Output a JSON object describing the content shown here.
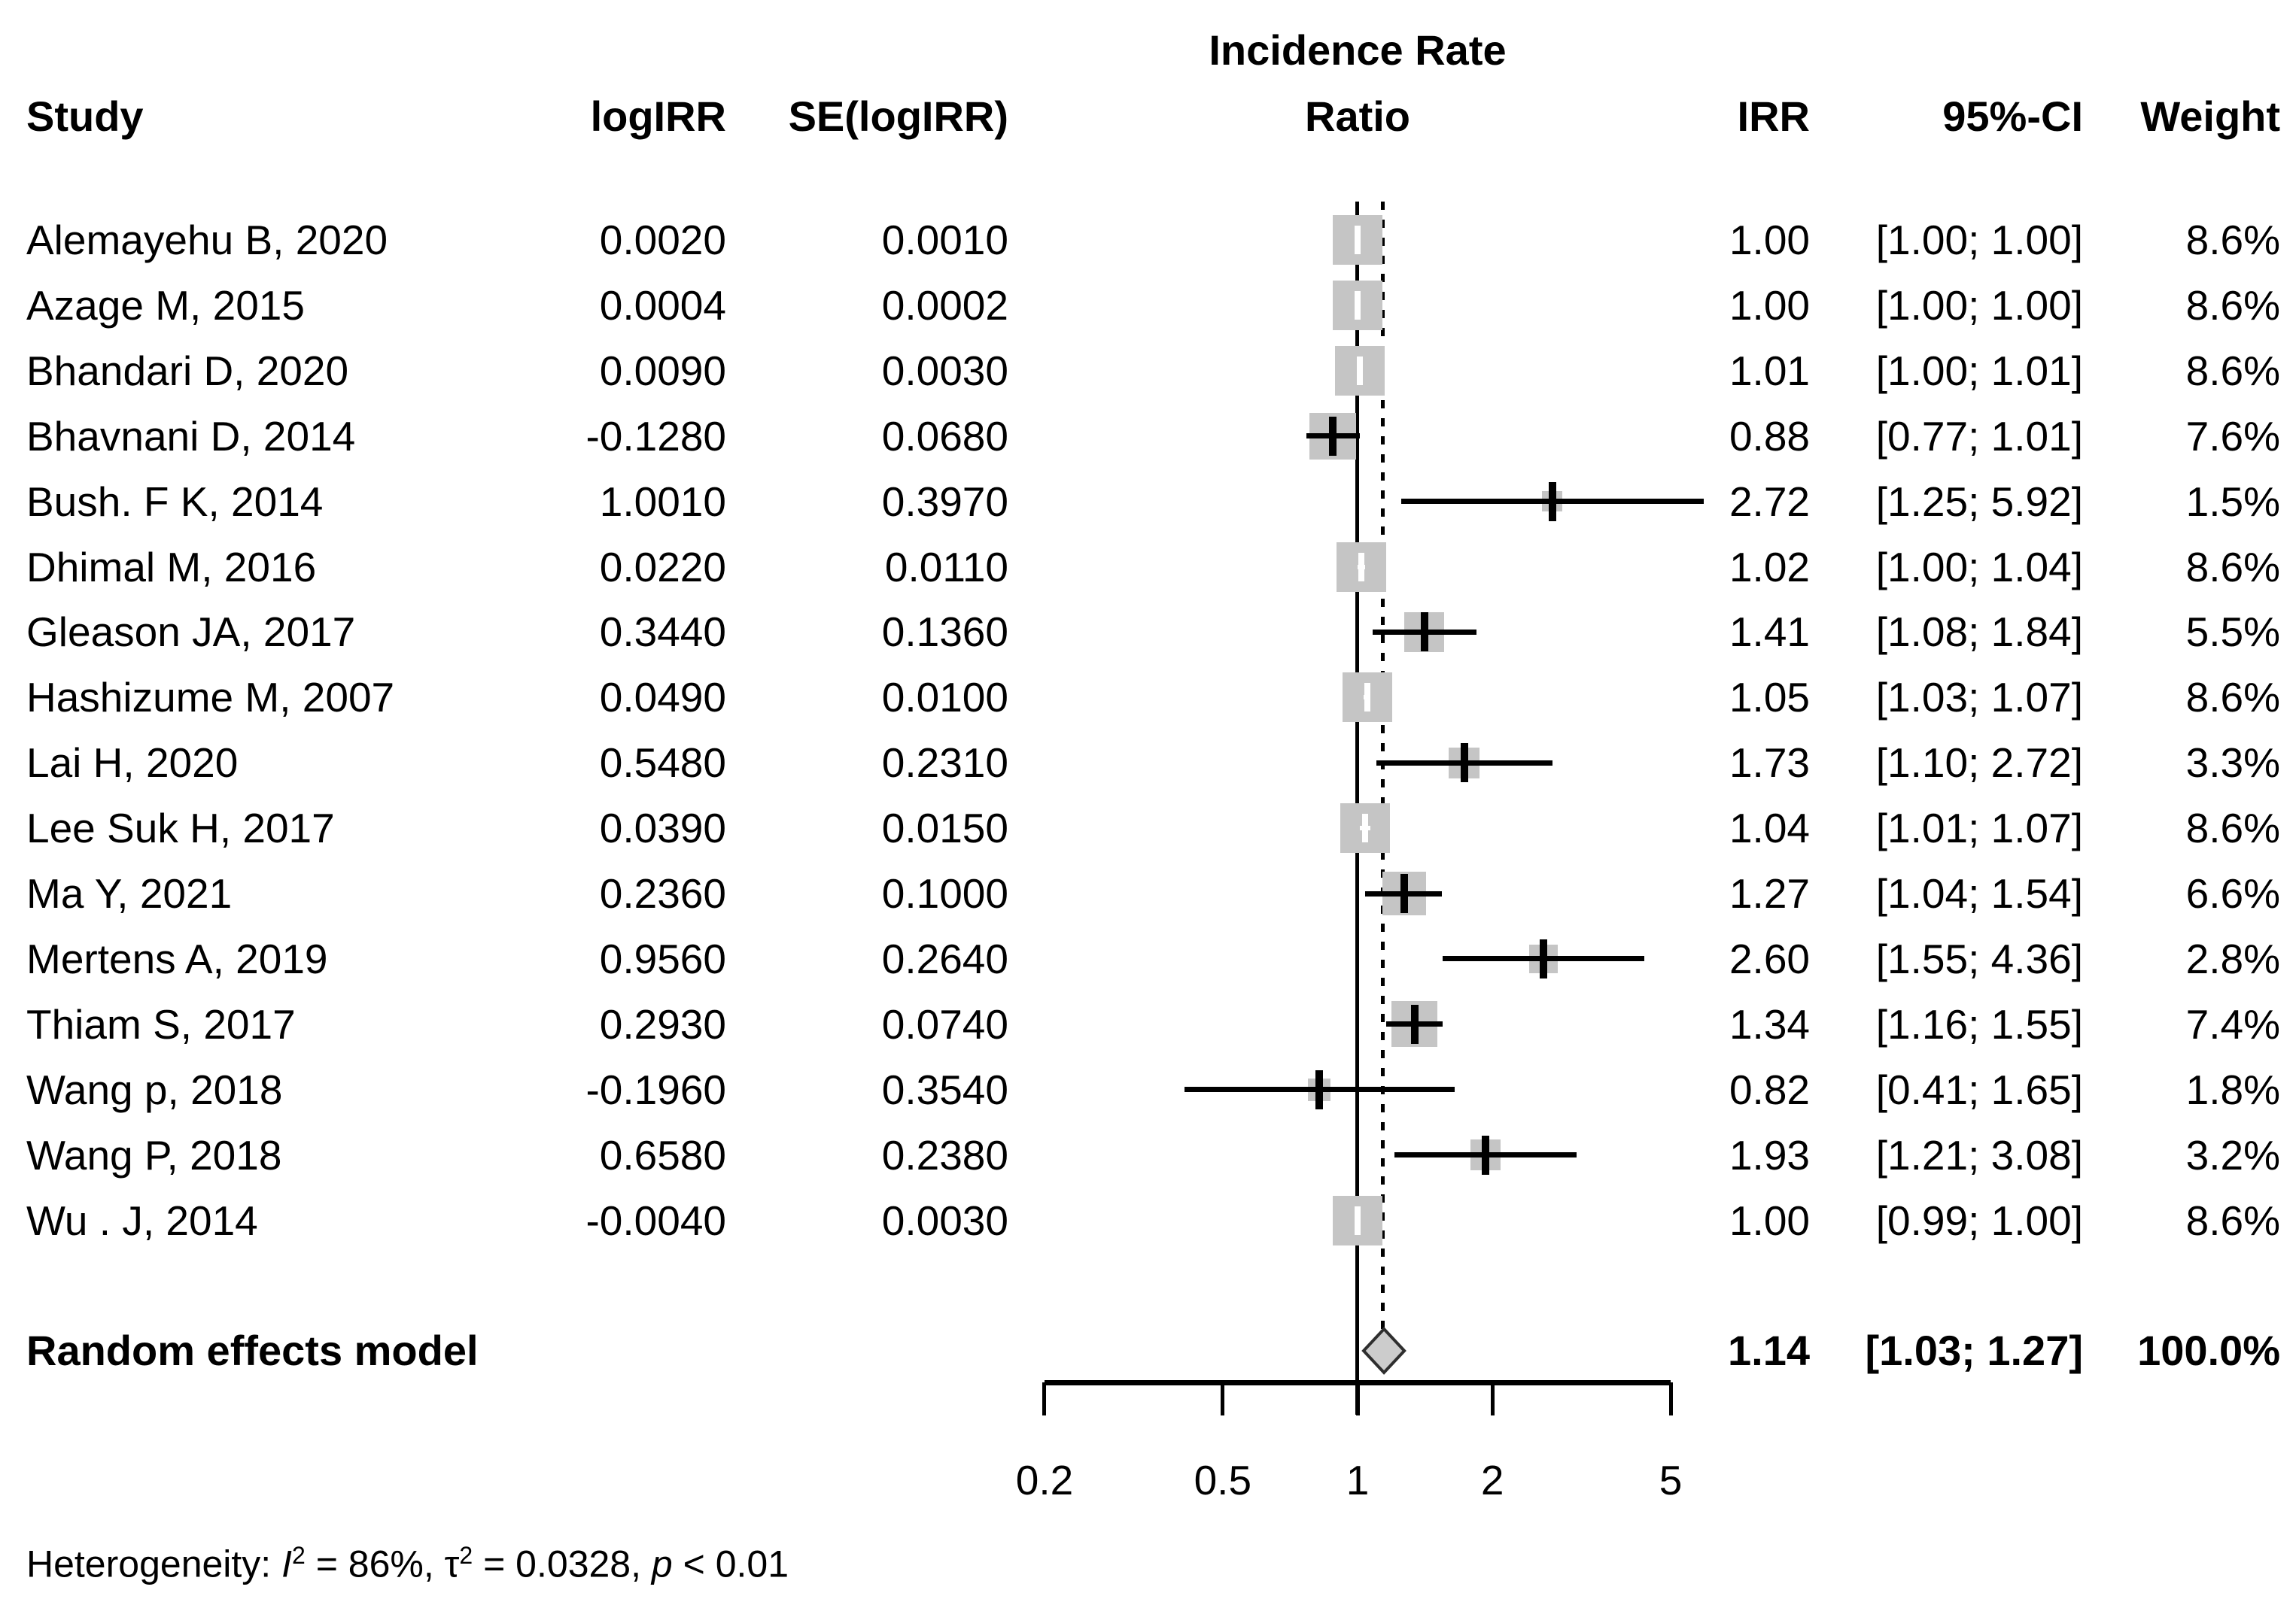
{
  "headers": {
    "study": "Study",
    "logirr": "logIRR",
    "se": "SE(logIRR)",
    "plot_line1": "Incidence Rate",
    "plot_line2": "Ratio",
    "irr": "IRR",
    "ci": "95%-CI",
    "weight": "Weight"
  },
  "chart_data": {
    "type": "forest",
    "x_axis": {
      "scale": "log",
      "ticks": [
        0.2,
        0.5,
        1,
        2,
        5
      ],
      "tick_labels": [
        "0.2",
        "0.5",
        "1",
        "2",
        "5"
      ],
      "reference_line": 1,
      "pooled_dashed_line": 1.14,
      "range": [
        0.2,
        5
      ]
    },
    "studies": [
      {
        "name": "Alemayehu B, 2020",
        "logIRR": "0.0020",
        "se": "0.0010",
        "irr": 1.0,
        "irr_text": "1.00",
        "ci_lo": 1.0,
        "ci_hi": 1.0,
        "ci_text": "[1.00; 1.00]",
        "weight": 8.6,
        "weight_text": "8.6%"
      },
      {
        "name": "Azage M, 2015",
        "logIRR": "0.0004",
        "se": "0.0002",
        "irr": 1.0,
        "irr_text": "1.00",
        "ci_lo": 1.0,
        "ci_hi": 1.0,
        "ci_text": "[1.00; 1.00]",
        "weight": 8.6,
        "weight_text": "8.6%"
      },
      {
        "name": "Bhandari D, 2020",
        "logIRR": "0.0090",
        "se": "0.0030",
        "irr": 1.01,
        "irr_text": "1.01",
        "ci_lo": 1.0,
        "ci_hi": 1.01,
        "ci_text": "[1.00; 1.01]",
        "weight": 8.6,
        "weight_text": "8.6%"
      },
      {
        "name": "Bhavnani D, 2014",
        "logIRR": "-0.1280",
        "se": "0.0680",
        "irr": 0.88,
        "irr_text": "0.88",
        "ci_lo": 0.77,
        "ci_hi": 1.01,
        "ci_text": "[0.77; 1.01]",
        "weight": 7.6,
        "weight_text": "7.6%"
      },
      {
        "name": "Bush. F K, 2014",
        "logIRR": "1.0010",
        "se": "0.3970",
        "irr": 2.72,
        "irr_text": "2.72",
        "ci_lo": 1.25,
        "ci_hi": 5.92,
        "ci_text": "[1.25; 5.92]",
        "weight": 1.5,
        "weight_text": "1.5%"
      },
      {
        "name": "Dhimal M, 2016",
        "logIRR": "0.0220",
        "se": "0.0110",
        "irr": 1.02,
        "irr_text": "1.02",
        "ci_lo": 1.0,
        "ci_hi": 1.04,
        "ci_text": "[1.00; 1.04]",
        "weight": 8.6,
        "weight_text": "8.6%"
      },
      {
        "name": "Gleason JA, 2017",
        "logIRR": "0.3440",
        "se": "0.1360",
        "irr": 1.41,
        "irr_text": "1.41",
        "ci_lo": 1.08,
        "ci_hi": 1.84,
        "ci_text": "[1.08; 1.84]",
        "weight": 5.5,
        "weight_text": "5.5%"
      },
      {
        "name": "Hashizume M, 2007",
        "logIRR": "0.0490",
        "se": "0.0100",
        "irr": 1.05,
        "irr_text": "1.05",
        "ci_lo": 1.03,
        "ci_hi": 1.07,
        "ci_text": "[1.03; 1.07]",
        "weight": 8.6,
        "weight_text": "8.6%"
      },
      {
        "name": "Lai H, 2020",
        "logIRR": "0.5480",
        "se": "0.2310",
        "irr": 1.73,
        "irr_text": "1.73",
        "ci_lo": 1.1,
        "ci_hi": 2.72,
        "ci_text": "[1.10; 2.72]",
        "weight": 3.3,
        "weight_text": "3.3%"
      },
      {
        "name": "Lee Suk H, 2017",
        "logIRR": "0.0390",
        "se": "0.0150",
        "irr": 1.04,
        "irr_text": "1.04",
        "ci_lo": 1.01,
        "ci_hi": 1.07,
        "ci_text": "[1.01; 1.07]",
        "weight": 8.6,
        "weight_text": "8.6%"
      },
      {
        "name": "Ma Y, 2021",
        "logIRR": "0.2360",
        "se": "0.1000",
        "irr": 1.27,
        "irr_text": "1.27",
        "ci_lo": 1.04,
        "ci_hi": 1.54,
        "ci_text": "[1.04; 1.54]",
        "weight": 6.6,
        "weight_text": "6.6%"
      },
      {
        "name": "Mertens A, 2019",
        "logIRR": "0.9560",
        "se": "0.2640",
        "irr": 2.6,
        "irr_text": "2.60",
        "ci_lo": 1.55,
        "ci_hi": 4.36,
        "ci_text": "[1.55; 4.36]",
        "weight": 2.8,
        "weight_text": "2.8%"
      },
      {
        "name": "Thiam S, 2017",
        "logIRR": "0.2930",
        "se": "0.0740",
        "irr": 1.34,
        "irr_text": "1.34",
        "ci_lo": 1.16,
        "ci_hi": 1.55,
        "ci_text": "[1.16; 1.55]",
        "weight": 7.4,
        "weight_text": "7.4%"
      },
      {
        "name": "Wang p, 2018",
        "logIRR": "-0.1960",
        "se": "0.3540",
        "irr": 0.82,
        "irr_text": "0.82",
        "ci_lo": 0.41,
        "ci_hi": 1.65,
        "ci_text": "[0.41; 1.65]",
        "weight": 1.8,
        "weight_text": "1.8%"
      },
      {
        "name": "Wang P, 2018",
        "logIRR": "0.6580",
        "se": "0.2380",
        "irr": 1.93,
        "irr_text": "1.93",
        "ci_lo": 1.21,
        "ci_hi": 3.08,
        "ci_text": "[1.21; 3.08]",
        "weight": 3.2,
        "weight_text": "3.2%"
      },
      {
        "name": "Wu . J, 2014",
        "logIRR": "-0.0040",
        "se": "0.0030",
        "irr": 1.0,
        "irr_text": "1.00",
        "ci_lo": 0.99,
        "ci_hi": 1.0,
        "ci_text": "[0.99; 1.00]",
        "weight": 8.6,
        "weight_text": "8.6%"
      }
    ],
    "summary": {
      "label": "Random effects model",
      "irr": 1.14,
      "irr_text": "1.14",
      "ci_lo": 1.03,
      "ci_hi": 1.27,
      "ci_text": "[1.03; 1.27]",
      "weight_text": "100.0%"
    },
    "heterogeneity": {
      "prefix": "Heterogeneity: ",
      "i_label": "I",
      "i_sup": "2",
      "i_val": " = 86%, ",
      "tau_label": "τ",
      "tau_sup": "2",
      "tau_val": " = 0.0328, ",
      "p_label": "p",
      "p_val": " < 0.01"
    }
  }
}
